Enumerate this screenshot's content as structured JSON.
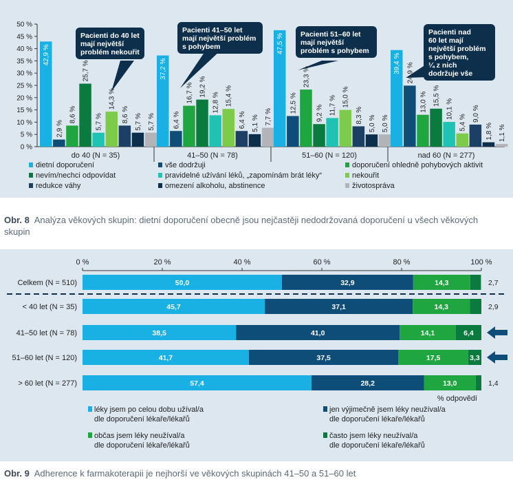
{
  "chart_data": [
    {
      "type": "bar",
      "id": "obr8",
      "ylim": [
        0,
        50
      ],
      "yticks": [
        "0 %",
        "5 %",
        "10 %",
        "15 %",
        "20 %",
        "25 %",
        "30 %",
        "35 %",
        "40 %",
        "45 %",
        "50 %"
      ],
      "categories": [
        "do 40 (N = 35)",
        "41–50 (N = 78)",
        "51–60 (N = 120)",
        "nad 60 (N = 277)"
      ],
      "series": [
        {
          "name": "dietní doporučení",
          "color": "#19b0e3",
          "values": [
            42.9,
            37.2,
            47.5,
            39.4
          ],
          "labels": [
            "42,9 %",
            "37,2 %",
            "47,5 %",
            "39,4 %"
          ]
        },
        {
          "name": "vše dodržuji",
          "color": "#0d4d78",
          "values": [
            2.9,
            6.4,
            12.5,
            24.9
          ],
          "labels": [
            "2,9 %",
            "6,4 %",
            "12,5 %",
            "24,9 %"
          ]
        },
        {
          "name": "doporučení ohledně pohybových aktivit",
          "color": "#1fa640",
          "values": [
            8.6,
            16.7,
            23.3,
            13.0
          ],
          "labels": [
            "8,6 %",
            "16,7 %",
            "23,3 %",
            "13,0 %"
          ]
        },
        {
          "name": "nevím/nechci odpovídat",
          "color": "#0b7a3e",
          "values": [
            25.7,
            19.2,
            9.2,
            15.5
          ],
          "labels": [
            "25,7 %",
            "19,2 %",
            "9,2 %",
            "15,5 %"
          ]
        },
        {
          "name": "pravidelné užívání léků, „zapomínám brát léky“",
          "color": "#1fc3b4",
          "values": [
            5.7,
            12.8,
            11.7,
            10.1
          ],
          "labels": [
            "5,7 %",
            "12,8 %",
            "11,7 %",
            "10,1 %"
          ]
        },
        {
          "name": "nekouřit",
          "color": "#7dcb4a",
          "values": [
            14.3,
            15.4,
            15.0,
            5.4
          ],
          "labels": [
            "14,3 %",
            "15,4 %",
            "15,0 %",
            "5,4 %"
          ]
        },
        {
          "name": "redukce váhy",
          "color": "#1c3f66",
          "values": [
            8.6,
            6.4,
            8.3,
            9.0
          ],
          "labels": [
            "8,6 %",
            "6,4 %",
            "8,3 %",
            "9,0 %"
          ]
        },
        {
          "name": "omezení alkoholu, abstinence",
          "color": "#0d2f4c",
          "values": [
            5.7,
            5.1,
            5.0,
            1.8
          ],
          "labels": [
            "5,7 %",
            "5,1 %",
            "5,0 %",
            "1,8 %"
          ]
        },
        {
          "name": "životospráva",
          "color": "#b2b4b7",
          "values": [
            5.7,
            7.7,
            5.0,
            1.1
          ],
          "labels": [
            "5,7 %",
            "7,7 %",
            "5,0 %",
            "1,1 %"
          ]
        }
      ],
      "annotations": [
        "Pacienti do 40 let mají největší problém nekouřit",
        "Pacienti 41–50 let mají největší problém s pohybem",
        "Pacienti 51–60 let mají největší problém s pohybem",
        "Pacienti nad 60 let mají největší problém s pohybem, ¼ z nich dodržuje vše"
      ]
    },
    {
      "type": "bar",
      "id": "obr9",
      "orientation": "horizontal",
      "stacked": true,
      "xlim": [
        0,
        100
      ],
      "xticks": [
        "0 %",
        "20 %",
        "40 %",
        "60 %",
        "80 %",
        "100 %"
      ],
      "xlabel": "% odpovědí",
      "categories": [
        "Celkem (N = 510)",
        "< 40 let (N = 35)",
        "41–50 let (N = 78)",
        "51–60 let (N = 120)",
        "> 60 let (N = 277)"
      ],
      "series": [
        {
          "name": "léky jsem po celou dobu užíval/a dle doporučení lékaře/lékařů",
          "color": "#19b0e3",
          "values": [
            50.0,
            45.7,
            38.5,
            41.7,
            57.4
          ],
          "labels": [
            "50,0",
            "45,7",
            "38,5",
            "41,7",
            "57,4"
          ]
        },
        {
          "name": "jen výjimečně jsem léky neužíval/a dle doporučení lékaře/lékařů",
          "color": "#0d4d78",
          "values": [
            32.9,
            37.1,
            41.0,
            37.5,
            28.2
          ],
          "labels": [
            "32,9",
            "37,1",
            "41,0",
            "37,5",
            "28,2"
          ]
        },
        {
          "name": "občas jsem léky neužíval/a dle doporučení lékaře/lékařů",
          "color": "#1fa640",
          "values": [
            14.3,
            14.3,
            14.1,
            17.5,
            13.0
          ],
          "labels": [
            "14,3",
            "14,3",
            "14,1",
            "17,5",
            "13,0"
          ]
        },
        {
          "name": "často jsem léky neužíval/a dle doporučení lékaře/lékařů",
          "color": "#0b7a3e",
          "values": [
            2.7,
            2.9,
            6.4,
            3.3,
            1.4
          ],
          "labels": [
            "2,7",
            "2,9",
            "6,4",
            "3,3",
            "1,4"
          ]
        }
      ],
      "highlighted_rows": [
        "41–50 let (N = 78)",
        "51–60 let (N = 120)"
      ]
    }
  ],
  "captions": {
    "fig8_label": "Obr. 8",
    "fig8_text": "Analýza věkových skupin: dietní doporučení obecně jsou nejčastěji nedodržovaná doporučení u všech věkových skupin",
    "fig9_label": "Obr. 9",
    "fig9_text": "Adherence k farmakoterapii je nejhorší ve věkových skupinách 41–50 a 51–60 let"
  }
}
